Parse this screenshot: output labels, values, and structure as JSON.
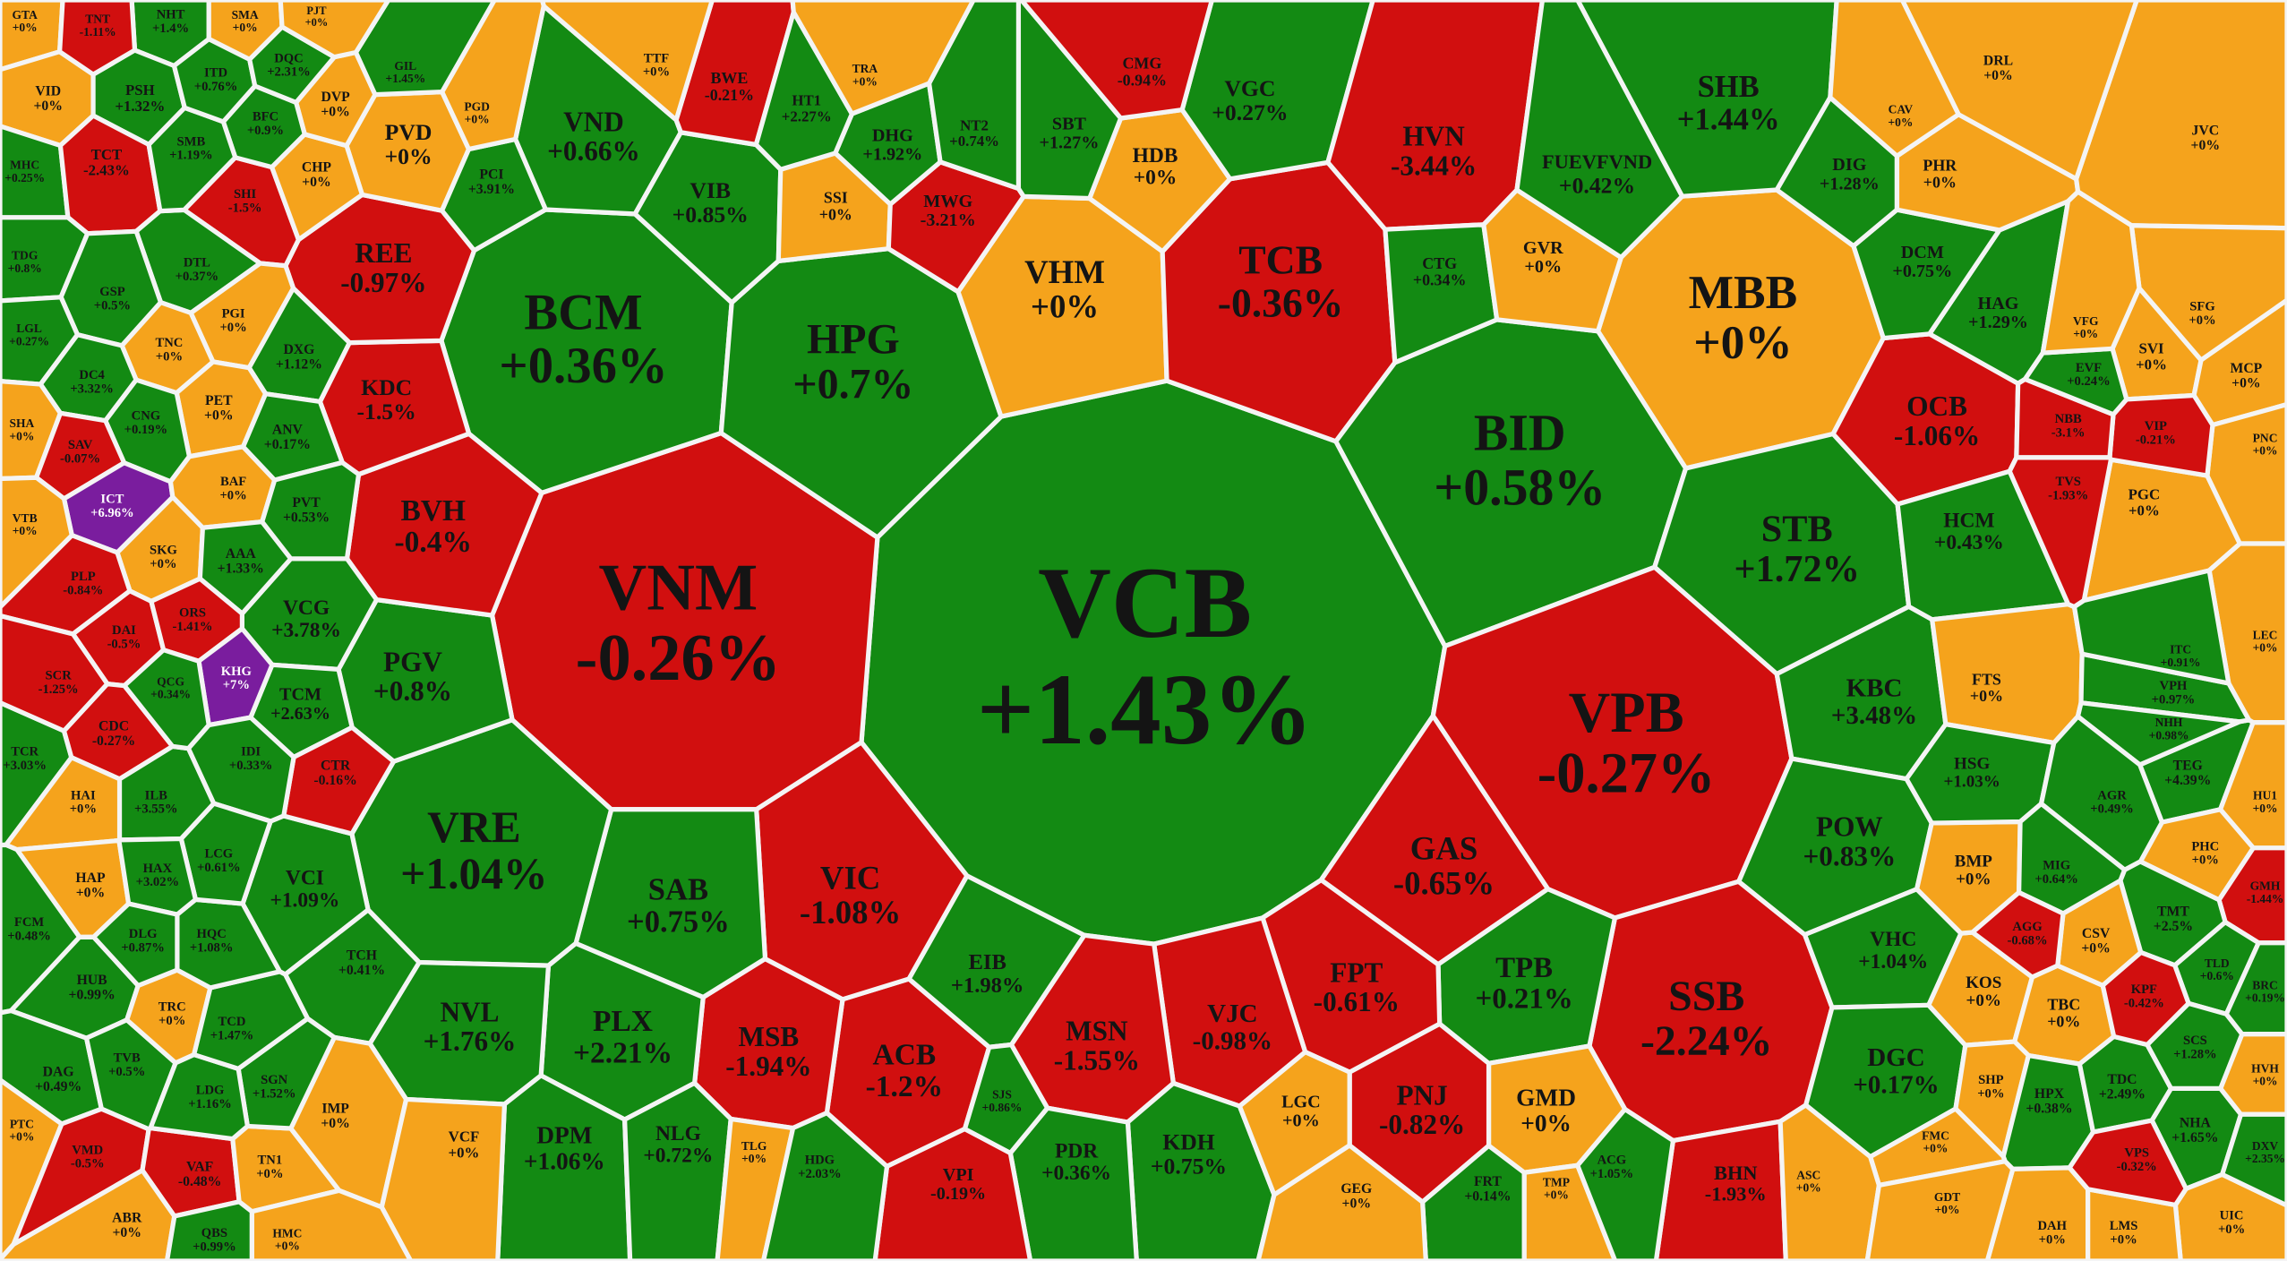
{
  "chart_data": {
    "type": "voronoi-treemap",
    "colors": {
      "up": "#138a13",
      "down": "#d10f0f",
      "flat": "#f5a31c",
      "ceiling": "#7a1d9e",
      "border": "#f4f4f4",
      "text": "#141414",
      "ceiling_text": "#ffffff"
    },
    "cells": [
      {
        "ticker": "VCB",
        "change": 1.43,
        "change_label": "+1.43%"
      },
      {
        "ticker": "VNM",
        "change": -0.26,
        "change_label": "-0.26%"
      },
      {
        "ticker": "BCM",
        "change": 0.36,
        "change_label": "+0.36%"
      },
      {
        "ticker": "HPG",
        "change": 0.7,
        "change_label": "+0.7%"
      },
      {
        "ticker": "VHM",
        "change": 0,
        "change_label": "+0%"
      },
      {
        "ticker": "TCB",
        "change": -0.36,
        "change_label": "-0.36%"
      },
      {
        "ticker": "MBB",
        "change": 0,
        "change_label": "+0%"
      },
      {
        "ticker": "BID",
        "change": 0.58,
        "change_label": "+0.58%"
      },
      {
        "ticker": "STB",
        "change": 1.72,
        "change_label": "+1.72%"
      },
      {
        "ticker": "VPB",
        "change": -0.27,
        "change_label": "-0.27%"
      },
      {
        "ticker": "SSB",
        "change": -2.24,
        "change_label": "-2.24%"
      },
      {
        "ticker": "GAS",
        "change": -0.65,
        "change_label": "-0.65%"
      },
      {
        "ticker": "TPB",
        "change": 0.21,
        "change_label": "+0.21%"
      },
      {
        "ticker": "GMD",
        "change": 0,
        "change_label": "+0%"
      },
      {
        "ticker": "PNJ",
        "change": -0.82,
        "change_label": "-0.82%"
      },
      {
        "ticker": "FPT",
        "change": -0.61,
        "change_label": "-0.61%"
      },
      {
        "ticker": "VJC",
        "change": -0.98,
        "change_label": "-0.98%"
      },
      {
        "ticker": "MSN",
        "change": -1.55,
        "change_label": "-1.55%"
      },
      {
        "ticker": "KDH",
        "change": 0.75,
        "change_label": "+0.75%"
      },
      {
        "ticker": "PDR",
        "change": 0.36,
        "change_label": "+0.36%"
      },
      {
        "ticker": "ACB",
        "change": -1.2,
        "change_label": "-1.2%"
      },
      {
        "ticker": "MSB",
        "change": -1.94,
        "change_label": "-1.94%"
      },
      {
        "ticker": "VIC",
        "change": -1.08,
        "change_label": "-1.08%"
      },
      {
        "ticker": "SAB",
        "change": 0.75,
        "change_label": "+0.75%"
      },
      {
        "ticker": "EIB",
        "change": 1.98,
        "change_label": "+1.98%"
      },
      {
        "ticker": "VRE",
        "change": 1.04,
        "change_label": "+1.04%"
      },
      {
        "ticker": "PLX",
        "change": 2.21,
        "change_label": "+2.21%"
      },
      {
        "ticker": "NVL",
        "change": 1.76,
        "change_label": "+1.76%"
      },
      {
        "ticker": "DPM",
        "change": 1.06,
        "change_label": "+1.06%"
      },
      {
        "ticker": "NLG",
        "change": 0.72,
        "change_label": "+0.72%"
      },
      {
        "ticker": "PGV",
        "change": 0.8,
        "change_label": "+0.8%"
      },
      {
        "ticker": "BVH",
        "change": -0.4,
        "change_label": "-0.4%"
      },
      {
        "ticker": "KDC",
        "change": -1.5,
        "change_label": "-1.5%"
      },
      {
        "ticker": "REE",
        "change": -0.97,
        "change_label": "-0.97%"
      },
      {
        "ticker": "VND",
        "change": 0.66,
        "change_label": "+0.66%"
      },
      {
        "ticker": "VIB",
        "change": 0.85,
        "change_label": "+0.85%"
      },
      {
        "ticker": "SSI",
        "change": 0,
        "change_label": "+0%"
      },
      {
        "ticker": "MWG",
        "change": -3.21,
        "change_label": "-3.21%"
      },
      {
        "ticker": "HDB",
        "change": 0,
        "change_label": "+0%"
      },
      {
        "ticker": "VGC",
        "change": 0.27,
        "change_label": "+0.27%"
      },
      {
        "ticker": "HVN",
        "change": -3.44,
        "change_label": "-3.44%"
      },
      {
        "ticker": "CTG",
        "change": 0.34,
        "change_label": "+0.34%"
      },
      {
        "ticker": "GVR",
        "change": 0,
        "change_label": "+0%"
      },
      {
        "ticker": "SHB",
        "change": 1.44,
        "change_label": "+1.44%"
      },
      {
        "ticker": "FUEVFVND",
        "change": 0.42,
        "change_label": "+0.42%"
      },
      {
        "ticker": "OCB",
        "change": -1.06,
        "change_label": "-1.06%"
      },
      {
        "ticker": "KBC",
        "change": 3.48,
        "change_label": "+3.48%"
      },
      {
        "ticker": "POW",
        "change": 0.83,
        "change_label": "+0.83%"
      },
      {
        "ticker": "VHC",
        "change": 1.04,
        "change_label": "+1.04%"
      },
      {
        "ticker": "DGC",
        "change": 0.17,
        "change_label": "+0.17%"
      },
      {
        "ticker": "HCM",
        "change": 0.43,
        "change_label": "+0.43%"
      },
      {
        "ticker": "PVD",
        "change": 0,
        "change_label": "+0%"
      },
      {
        "ticker": "DHG",
        "change": 1.92,
        "change_label": "+1.92%"
      },
      {
        "ticker": "SBT",
        "change": 1.27,
        "change_label": "+1.27%"
      },
      {
        "ticker": "VCG",
        "change": 3.78,
        "change_label": "+3.78%"
      },
      {
        "ticker": "VCI",
        "change": 1.09,
        "change_label": "+1.09%"
      },
      {
        "ticker": "TCM",
        "change": 2.63,
        "change_label": "+2.63%"
      },
      {
        "ticker": "HAG",
        "change": 1.29,
        "change_label": "+1.29%"
      },
      {
        "ticker": "CMG",
        "change": -0.94,
        "change_label": "-0.94%"
      },
      {
        "ticker": "BWE",
        "change": -0.21,
        "change_label": "-0.21%"
      },
      {
        "ticker": "DCM",
        "change": 0.75,
        "change_label": "+0.75%"
      },
      {
        "ticker": "DIG",
        "change": 1.28,
        "change_label": "+1.28%"
      },
      {
        "ticker": "PHR",
        "change": 0,
        "change_label": "+0%"
      },
      {
        "ticker": "LGC",
        "change": 0,
        "change_label": "+0%"
      },
      {
        "ticker": "BHN",
        "change": -1.93,
        "change_label": "-1.93%"
      },
      {
        "ticker": "VPI",
        "change": -0.19,
        "change_label": "-0.19%"
      },
      {
        "ticker": "GTA",
        "change": 0,
        "change_label": "+0%"
      },
      {
        "ticker": "NHT",
        "change": 1.4,
        "change_label": "+1.4%"
      },
      {
        "ticker": "VID",
        "change": 0,
        "change_label": "+0%"
      },
      {
        "ticker": "PSH",
        "change": 1.32,
        "change_label": "+1.32%"
      },
      {
        "ticker": "MHC",
        "change": 0.25,
        "change_label": "+0.25%"
      },
      {
        "ticker": "TCT",
        "change": -2.43,
        "change_label": "-2.43%"
      },
      {
        "ticker": "SHI",
        "change": -1.5,
        "change_label": "-1.5%"
      },
      {
        "ticker": "CHP",
        "change": 0,
        "change_label": "+0%"
      },
      {
        "ticker": "DVP",
        "change": 0,
        "change_label": "+0%"
      },
      {
        "ticker": "DTL",
        "change": 0.37,
        "change_label": "+0.37%"
      },
      {
        "ticker": "TDG",
        "change": 0.8,
        "change_label": "+0.8%"
      },
      {
        "ticker": "GSP",
        "change": 0.5,
        "change_label": "+0.5%"
      },
      {
        "ticker": "TNC",
        "change": 0,
        "change_label": "+0%"
      },
      {
        "ticker": "PGI",
        "change": 0,
        "change_label": "+0%"
      },
      {
        "ticker": "DXG",
        "change": 1.12,
        "change_label": "+1.12%"
      },
      {
        "ticker": "LGL",
        "change": 0.27,
        "change_label": "+0.27%"
      },
      {
        "ticker": "DC4",
        "change": 3.32,
        "change_label": "+3.32%"
      },
      {
        "ticker": "PET",
        "change": 0,
        "change_label": "+0%"
      },
      {
        "ticker": "CNG",
        "change": 0.19,
        "change_label": "+0.19%"
      },
      {
        "ticker": "SHA",
        "change": 0,
        "change_label": "+0%"
      },
      {
        "ticker": "SAV",
        "change": -0.07,
        "change_label": "-0.07%"
      },
      {
        "ticker": "ICT",
        "change": 6.96,
        "change_label": "+6.96%",
        "ceiling": true
      },
      {
        "ticker": "BAF",
        "change": 0,
        "change_label": "+0%"
      },
      {
        "ticker": "VTB",
        "change": 0,
        "change_label": "+0%"
      },
      {
        "ticker": "SKG",
        "change": 0,
        "change_label": "+0%"
      },
      {
        "ticker": "PLP",
        "change": -0.84,
        "change_label": "-0.84%"
      },
      {
        "ticker": "AAA",
        "change": 1.33,
        "change_label": "+1.33%"
      },
      {
        "ticker": "DAI",
        "change": -0.5,
        "change_label": "-0.5%"
      },
      {
        "ticker": "ORS",
        "change": -1.41,
        "change_label": "-1.41%"
      },
      {
        "ticker": "KHG",
        "change": 7,
        "change_label": "+7%",
        "ceiling": true
      },
      {
        "ticker": "TCR",
        "change": 3.03,
        "change_label": "+3.03%"
      },
      {
        "ticker": "SCR",
        "change": -1.25,
        "change_label": "-1.25%"
      },
      {
        "ticker": "CDC",
        "change": -0.27,
        "change_label": "-0.27%"
      },
      {
        "ticker": "CTR",
        "change": -0.16,
        "change_label": "-0.16%"
      },
      {
        "ticker": "HAI",
        "change": 0,
        "change_label": "+0%"
      },
      {
        "ticker": "ILB",
        "change": 3.55,
        "change_label": "+3.55%"
      },
      {
        "ticker": "HAP",
        "change": 0,
        "change_label": "+0%"
      },
      {
        "ticker": "FCM",
        "change": 0.48,
        "change_label": "+0.48%"
      },
      {
        "ticker": "HUB",
        "change": 0.99,
        "change_label": "+0.99%"
      },
      {
        "ticker": "TCH",
        "change": 0.41,
        "change_label": "+0.41%"
      },
      {
        "ticker": "DAG",
        "change": 0.49,
        "change_label": "+0.49%"
      },
      {
        "ticker": "TVB",
        "change": 0.5,
        "change_label": "+0.5%"
      },
      {
        "ticker": "TRC",
        "change": 0,
        "change_label": "+0%"
      },
      {
        "ticker": "PTC",
        "change": 0,
        "change_label": "+0%"
      },
      {
        "ticker": "VMD",
        "change": -0.5,
        "change_label": "-0.5%"
      },
      {
        "ticker": "VAF",
        "change": -0.48,
        "change_label": "-0.48%"
      },
      {
        "ticker": "TN1",
        "change": 0,
        "change_label": "+0%"
      },
      {
        "ticker": "IMP",
        "change": 0,
        "change_label": "+0%"
      },
      {
        "ticker": "VCF",
        "change": 0,
        "change_label": "+0%"
      },
      {
        "ticker": "ABR",
        "change": 0,
        "change_label": "+0%"
      },
      {
        "ticker": "HMC",
        "change": 0,
        "change_label": "+0%"
      },
      {
        "ticker": "QBS",
        "change": 0.99,
        "change_label": "+0.99%"
      },
      {
        "ticker": "TLG",
        "change": 0,
        "change_label": "+0%"
      },
      {
        "ticker": "HDG",
        "change": 2.03,
        "change_label": "+2.03%"
      },
      {
        "ticker": "KOS",
        "change": 0,
        "change_label": "+0%"
      },
      {
        "ticker": "TBC",
        "change": 0,
        "change_label": "+0%"
      },
      {
        "ticker": "CSV",
        "change": 0,
        "change_label": "+0%"
      },
      {
        "ticker": "BMP",
        "change": 0,
        "change_label": "+0%"
      },
      {
        "ticker": "FTS",
        "change": 0,
        "change_label": "+0%"
      },
      {
        "ticker": "PGC",
        "change": 0,
        "change_label": "+0%"
      },
      {
        "ticker": "SVI",
        "change": 0,
        "change_label": "+0%"
      },
      {
        "ticker": "MCP",
        "change": 0,
        "change_label": "+0%"
      },
      {
        "ticker": "PNC",
        "change": 0,
        "change_label": "+0%"
      },
      {
        "ticker": "VIP",
        "change": -0.21,
        "change_label": "-0.21%"
      },
      {
        "ticker": "NBB",
        "change": -3.1,
        "change_label": "-3.1%"
      },
      {
        "ticker": "TVS",
        "change": -1.93,
        "change_label": "-1.93%"
      },
      {
        "ticker": "JVC",
        "change": 0,
        "change_label": "+0%"
      },
      {
        "ticker": "DRL",
        "change": 0,
        "change_label": "+0%"
      },
      {
        "ticker": "CAV",
        "change": 0,
        "change_label": "+0%"
      },
      {
        "ticker": "SFG",
        "change": 0,
        "change_label": "+0%"
      },
      {
        "ticker": "EVF",
        "change": 0.24,
        "change_label": "+0.24%"
      },
      {
        "ticker": "VFG",
        "change": 0,
        "change_label": "+0%"
      },
      {
        "ticker": "HSG",
        "change": 1.03,
        "change_label": "+1.03%"
      },
      {
        "ticker": "TEG",
        "change": 4.39,
        "change_label": "+4.39%"
      },
      {
        "ticker": "HU1",
        "change": 0,
        "change_label": "+0%"
      },
      {
        "ticker": "PHC",
        "change": 0,
        "change_label": "+0%"
      },
      {
        "ticker": "GMH",
        "change": -1.44,
        "change_label": "-1.44%"
      },
      {
        "ticker": "LEC",
        "change": 0,
        "change_label": "+0%"
      },
      {
        "ticker": "SHP",
        "change": 0,
        "change_label": "+0%"
      },
      {
        "ticker": "HPX",
        "change": 0.38,
        "change_label": "+0.38%"
      },
      {
        "ticker": "TDC",
        "change": 2.49,
        "change_label": "+2.49%"
      },
      {
        "ticker": "NHA",
        "change": 1.65,
        "change_label": "+1.65%"
      },
      {
        "ticker": "HVH",
        "change": 0,
        "change_label": "+0%"
      },
      {
        "ticker": "UIC",
        "change": 0,
        "change_label": "+0%"
      },
      {
        "ticker": "DAH",
        "change": 0,
        "change_label": "+0%"
      },
      {
        "ticker": "LMS",
        "change": 0,
        "change_label": "+0%"
      },
      {
        "ticker": "FMC",
        "change": 0,
        "change_label": "+0%"
      },
      {
        "ticker": "ASC",
        "change": 0,
        "change_label": "+0%"
      },
      {
        "ticker": "GDT",
        "change": 0,
        "change_label": "+0%"
      },
      {
        "ticker": "TMP",
        "change": 0,
        "change_label": "+0%"
      },
      {
        "ticker": "FRT",
        "change": 0.14,
        "change_label": "+0.14%"
      },
      {
        "ticker": "GEG",
        "change": 0,
        "change_label": "+0%"
      },
      {
        "ticker": "VPH",
        "change": 0.97,
        "change_label": "+0.97%"
      },
      {
        "ticker": "NHH",
        "change": 0.98,
        "change_label": "+0.98%"
      },
      {
        "ticker": "ITC",
        "change": 0.91,
        "change_label": "+0.91%"
      },
      {
        "ticker": "AGR",
        "change": 0.49,
        "change_label": "+0.49%"
      },
      {
        "ticker": "MIG",
        "change": 0.64,
        "change_label": "+0.64%"
      },
      {
        "ticker": "TMT",
        "change": 2.5,
        "change_label": "+2.5%"
      },
      {
        "ticker": "TLD",
        "change": 0.6,
        "change_label": "+0.6%"
      },
      {
        "ticker": "SCS",
        "change": 1.28,
        "change_label": "+1.28%"
      },
      {
        "ticker": "BRC",
        "change": 0.19,
        "change_label": "+0.19%"
      },
      {
        "ticker": "KPF",
        "change": -0.42,
        "change_label": "-0.42%"
      },
      {
        "ticker": "AGG",
        "change": -0.68,
        "change_label": "-0.68%"
      },
      {
        "ticker": "VPS",
        "change": -0.32,
        "change_label": "-0.32%"
      },
      {
        "ticker": "GIL",
        "change": 1.45,
        "change_label": "+1.45%"
      },
      {
        "ticker": "PCI",
        "change": 3.91,
        "change_label": "+3.91%"
      },
      {
        "ticker": "TTF",
        "change": 0,
        "change_label": "+0%"
      },
      {
        "ticker": "PGD",
        "change": 0,
        "change_label": "+0%"
      },
      {
        "ticker": "ANV",
        "change": 0.17,
        "change_label": "+0.17%"
      },
      {
        "ticker": "PVT",
        "change": 0.53,
        "change_label": "+0.53%"
      },
      {
        "ticker": "QCG",
        "change": 0.34,
        "change_label": "+0.34%"
      },
      {
        "ticker": "IDI",
        "change": 0.33,
        "change_label": "+0.33%"
      },
      {
        "ticker": "SGN",
        "change": 1.52,
        "change_label": "+1.52%"
      },
      {
        "ticker": "LDG",
        "change": 1.16,
        "change_label": "+1.16%"
      },
      {
        "ticker": "TCD",
        "change": 1.47,
        "change_label": "+1.47%"
      },
      {
        "ticker": "HQC",
        "change": 1.08,
        "change_label": "+1.08%"
      },
      {
        "ticker": "LCG",
        "change": 0.61,
        "change_label": "+0.61%"
      },
      {
        "ticker": "HAX",
        "change": 3.02,
        "change_label": "+3.02%"
      },
      {
        "ticker": "DLG",
        "change": 0.87,
        "change_label": "+0.87%"
      },
      {
        "ticker": "BFC",
        "change": 0.9,
        "change_label": "+0.9%"
      },
      {
        "ticker": "SMB",
        "change": 1.19,
        "change_label": "+1.19%"
      },
      {
        "ticker": "ITD",
        "change": 0.76,
        "change_label": "+0.76%"
      },
      {
        "ticker": "DQC",
        "change": 2.31,
        "change_label": "+2.31%"
      },
      {
        "ticker": "SMA",
        "change": 0,
        "change_label": "+0%"
      },
      {
        "ticker": "PJT",
        "change": 0,
        "change_label": "+0%"
      },
      {
        "ticker": "TNT",
        "change": -1.11,
        "change_label": "-1.11%"
      },
      {
        "ticker": "NT2",
        "change": 0.74,
        "change_label": "+0.74%"
      },
      {
        "ticker": "HT1",
        "change": 2.27,
        "change_label": "+2.27%"
      },
      {
        "ticker": "TRA",
        "change": 0,
        "change_label": "+0%"
      },
      {
        "ticker": "SJS",
        "change": 0.86,
        "change_label": "+0.86%"
      },
      {
        "ticker": "DXV",
        "change": 2.35,
        "change_label": "+2.35%"
      },
      {
        "ticker": "ACG",
        "change": 1.05,
        "change_label": "+1.05%"
      }
    ]
  }
}
